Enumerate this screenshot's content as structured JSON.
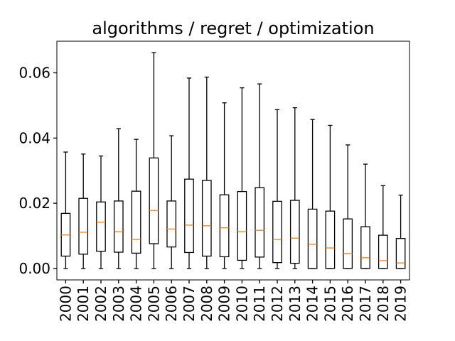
{
  "chart_data": {
    "type": "boxplot",
    "title": "algorithms / regret / optimization",
    "xlabel": "",
    "ylabel": "",
    "ylim": [
      -0.0035,
      0.0697
    ],
    "yticks": [
      0.0,
      0.02,
      0.04,
      0.06
    ],
    "ytick_labels": [
      "0.00",
      "0.02",
      "0.04",
      "0.06"
    ],
    "grid": false,
    "legend": "none",
    "colors": {
      "box": "#000000",
      "whisker": "#000000",
      "median": "#ff7f0e"
    },
    "categories": [
      "2000",
      "2001",
      "2002",
      "2003",
      "2004",
      "2005",
      "2006",
      "2007",
      "2008",
      "2009",
      "2010",
      "2011",
      "2012",
      "2013",
      "2014",
      "2015",
      "2016",
      "2017",
      "2018",
      "2019"
    ],
    "boxes": [
      {
        "min": 0.0,
        "q1": 0.0038,
        "median": 0.0103,
        "q3": 0.0169,
        "max": 0.0357
      },
      {
        "min": 0.0,
        "q1": 0.0044,
        "median": 0.0111,
        "q3": 0.0215,
        "max": 0.0351
      },
      {
        "min": 0.0,
        "q1": 0.0053,
        "median": 0.0142,
        "q3": 0.0204,
        "max": 0.0345
      },
      {
        "min": 0.0,
        "q1": 0.005,
        "median": 0.0113,
        "q3": 0.0207,
        "max": 0.0429
      },
      {
        "min": 0.0,
        "q1": 0.0047,
        "median": 0.0089,
        "q3": 0.0237,
        "max": 0.0396
      },
      {
        "min": 0.0,
        "q1": 0.0076,
        "median": 0.0178,
        "q3": 0.0339,
        "max": 0.0662
      },
      {
        "min": 0.0,
        "q1": 0.0066,
        "median": 0.0121,
        "q3": 0.0207,
        "max": 0.0407
      },
      {
        "min": 0.0,
        "q1": 0.0049,
        "median": 0.0133,
        "q3": 0.0274,
        "max": 0.0584
      },
      {
        "min": 0.0,
        "q1": 0.0038,
        "median": 0.0131,
        "q3": 0.027,
        "max": 0.0587
      },
      {
        "min": 0.0,
        "q1": 0.0036,
        "median": 0.0125,
        "q3": 0.0226,
        "max": 0.0508
      },
      {
        "min": 0.0,
        "q1": 0.0025,
        "median": 0.0113,
        "q3": 0.0236,
        "max": 0.0554
      },
      {
        "min": 0.0,
        "q1": 0.0035,
        "median": 0.0117,
        "q3": 0.0248,
        "max": 0.0566
      },
      {
        "min": 0.0,
        "q1": 0.0018,
        "median": 0.0089,
        "q3": 0.0206,
        "max": 0.0487
      },
      {
        "min": 0.0,
        "q1": 0.0016,
        "median": 0.0093,
        "q3": 0.0209,
        "max": 0.0493
      },
      {
        "min": 0.0,
        "q1": 0.0,
        "median": 0.0074,
        "q3": 0.0182,
        "max": 0.0457
      },
      {
        "min": 0.0,
        "q1": 0.0,
        "median": 0.0063,
        "q3": 0.0176,
        "max": 0.0439
      },
      {
        "min": 0.0,
        "q1": 0.0,
        "median": 0.0046,
        "q3": 0.0152,
        "max": 0.0379
      },
      {
        "min": 0.0,
        "q1": 0.0,
        "median": 0.0033,
        "q3": 0.0128,
        "max": 0.032
      },
      {
        "min": 0.0,
        "q1": 0.0,
        "median": 0.0024,
        "q3": 0.0102,
        "max": 0.0254
      },
      {
        "min": 0.0,
        "q1": 0.0,
        "median": 0.0017,
        "q3": 0.0092,
        "max": 0.0225
      }
    ]
  }
}
